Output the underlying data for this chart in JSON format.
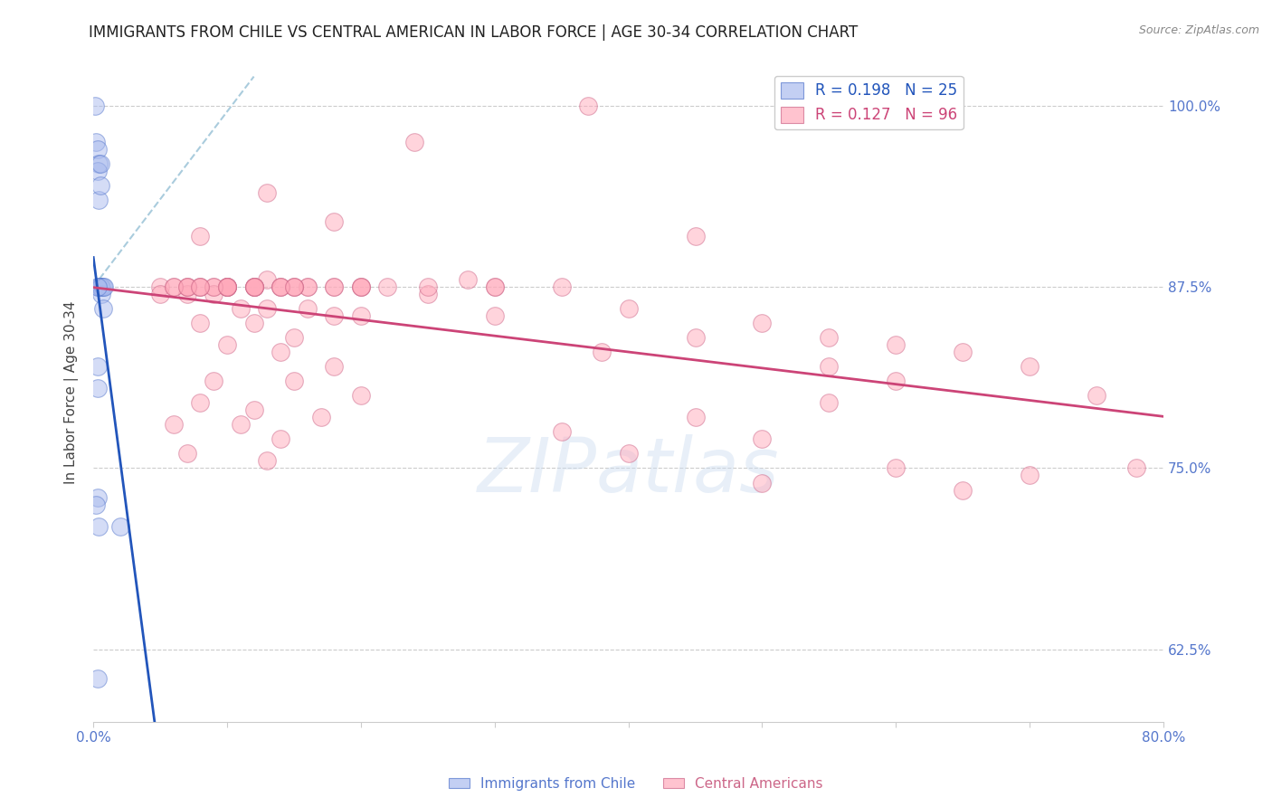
{
  "title": "IMMIGRANTS FROM CHILE VS CENTRAL AMERICAN IN LABOR FORCE | AGE 30-34 CORRELATION CHART",
  "source": "Source: ZipAtlas.com",
  "ylabel": "In Labor Force | Age 30-34",
  "ytick_labels": [
    "62.5%",
    "75.0%",
    "87.5%",
    "100.0%"
  ],
  "ytick_values": [
    0.625,
    0.75,
    0.875,
    1.0
  ],
  "xlim": [
    0.0,
    0.8
  ],
  "ylim": [
    0.575,
    1.03
  ],
  "R_chile": 0.198,
  "N_chile": 25,
  "R_central": 0.127,
  "N_central": 96,
  "chile_fill_color": "#aabbee",
  "chile_edge_color": "#5577cc",
  "central_fill_color": "#ffaabb",
  "central_edge_color": "#cc6688",
  "chile_line_color": "#2255bb",
  "central_line_color": "#cc4477",
  "diagonal_color": "#aaccdd",
  "watermark_color": "#ddeeff",
  "background_color": "#ffffff",
  "grid_color": "#cccccc",
  "axis_label_color": "#5577cc",
  "title_color": "#222222",
  "source_color": "#888888",
  "ylabel_color": "#444444",
  "legend_edge_color": "#cccccc",
  "chile_points_x": [
    0.001,
    0.002,
    0.003,
    0.004,
    0.003,
    0.004,
    0.005,
    0.005,
    0.004,
    0.005,
    0.005,
    0.005,
    0.006,
    0.006,
    0.007,
    0.007,
    0.008,
    0.003,
    0.003,
    0.003,
    0.002,
    0.004,
    0.02,
    0.003,
    0.003
  ],
  "chile_points_y": [
    1.0,
    0.975,
    0.97,
    0.96,
    0.955,
    0.935,
    0.96,
    0.945,
    0.875,
    0.875,
    0.875,
    0.875,
    0.875,
    0.87,
    0.875,
    0.86,
    0.875,
    0.82,
    0.805,
    0.73,
    0.725,
    0.71,
    0.71,
    0.605,
    0.875
  ],
  "central_points_x": [
    0.37,
    0.24,
    0.13,
    0.18,
    0.08,
    0.45,
    0.13,
    0.28,
    0.05,
    0.07,
    0.09,
    0.1,
    0.12,
    0.14,
    0.16,
    0.18,
    0.2,
    0.22,
    0.05,
    0.07,
    0.09,
    0.11,
    0.13,
    0.16,
    0.18,
    0.2,
    0.08,
    0.12,
    0.15,
    0.1,
    0.14,
    0.18,
    0.09,
    0.15,
    0.2,
    0.08,
    0.12,
    0.17,
    0.06,
    0.11,
    0.14,
    0.07,
    0.13,
    0.1,
    0.08,
    0.12,
    0.16,
    0.06,
    0.1,
    0.15,
    0.07,
    0.12,
    0.1,
    0.08,
    0.14,
    0.2,
    0.06,
    0.1,
    0.15,
    0.07,
    0.12,
    0.18,
    0.09,
    0.14,
    0.3,
    0.35,
    0.25,
    0.4,
    0.3,
    0.5,
    0.45,
    0.38,
    0.55,
    0.6,
    0.65,
    0.55,
    0.7,
    0.6,
    0.75,
    0.55,
    0.45,
    0.35,
    0.5,
    0.4,
    0.6,
    0.7,
    0.5,
    0.78,
    0.65,
    0.1,
    0.12,
    0.2,
    0.08,
    0.15,
    0.25,
    0.3
  ],
  "central_points_y": [
    1.0,
    0.975,
    0.94,
    0.92,
    0.91,
    0.91,
    0.88,
    0.88,
    0.875,
    0.875,
    0.875,
    0.875,
    0.875,
    0.875,
    0.875,
    0.875,
    0.875,
    0.875,
    0.87,
    0.87,
    0.87,
    0.86,
    0.86,
    0.86,
    0.855,
    0.855,
    0.85,
    0.85,
    0.84,
    0.835,
    0.83,
    0.82,
    0.81,
    0.81,
    0.8,
    0.795,
    0.79,
    0.785,
    0.78,
    0.78,
    0.77,
    0.76,
    0.755,
    0.875,
    0.875,
    0.875,
    0.875,
    0.875,
    0.875,
    0.875,
    0.875,
    0.875,
    0.875,
    0.875,
    0.875,
    0.875,
    0.875,
    0.875,
    0.875,
    0.875,
    0.875,
    0.875,
    0.875,
    0.875,
    0.875,
    0.875,
    0.87,
    0.86,
    0.855,
    0.85,
    0.84,
    0.83,
    0.84,
    0.835,
    0.83,
    0.82,
    0.82,
    0.81,
    0.8,
    0.795,
    0.785,
    0.775,
    0.77,
    0.76,
    0.75,
    0.745,
    0.74,
    0.75,
    0.735,
    0.875,
    0.875,
    0.875,
    0.875,
    0.875,
    0.875,
    0.875
  ]
}
